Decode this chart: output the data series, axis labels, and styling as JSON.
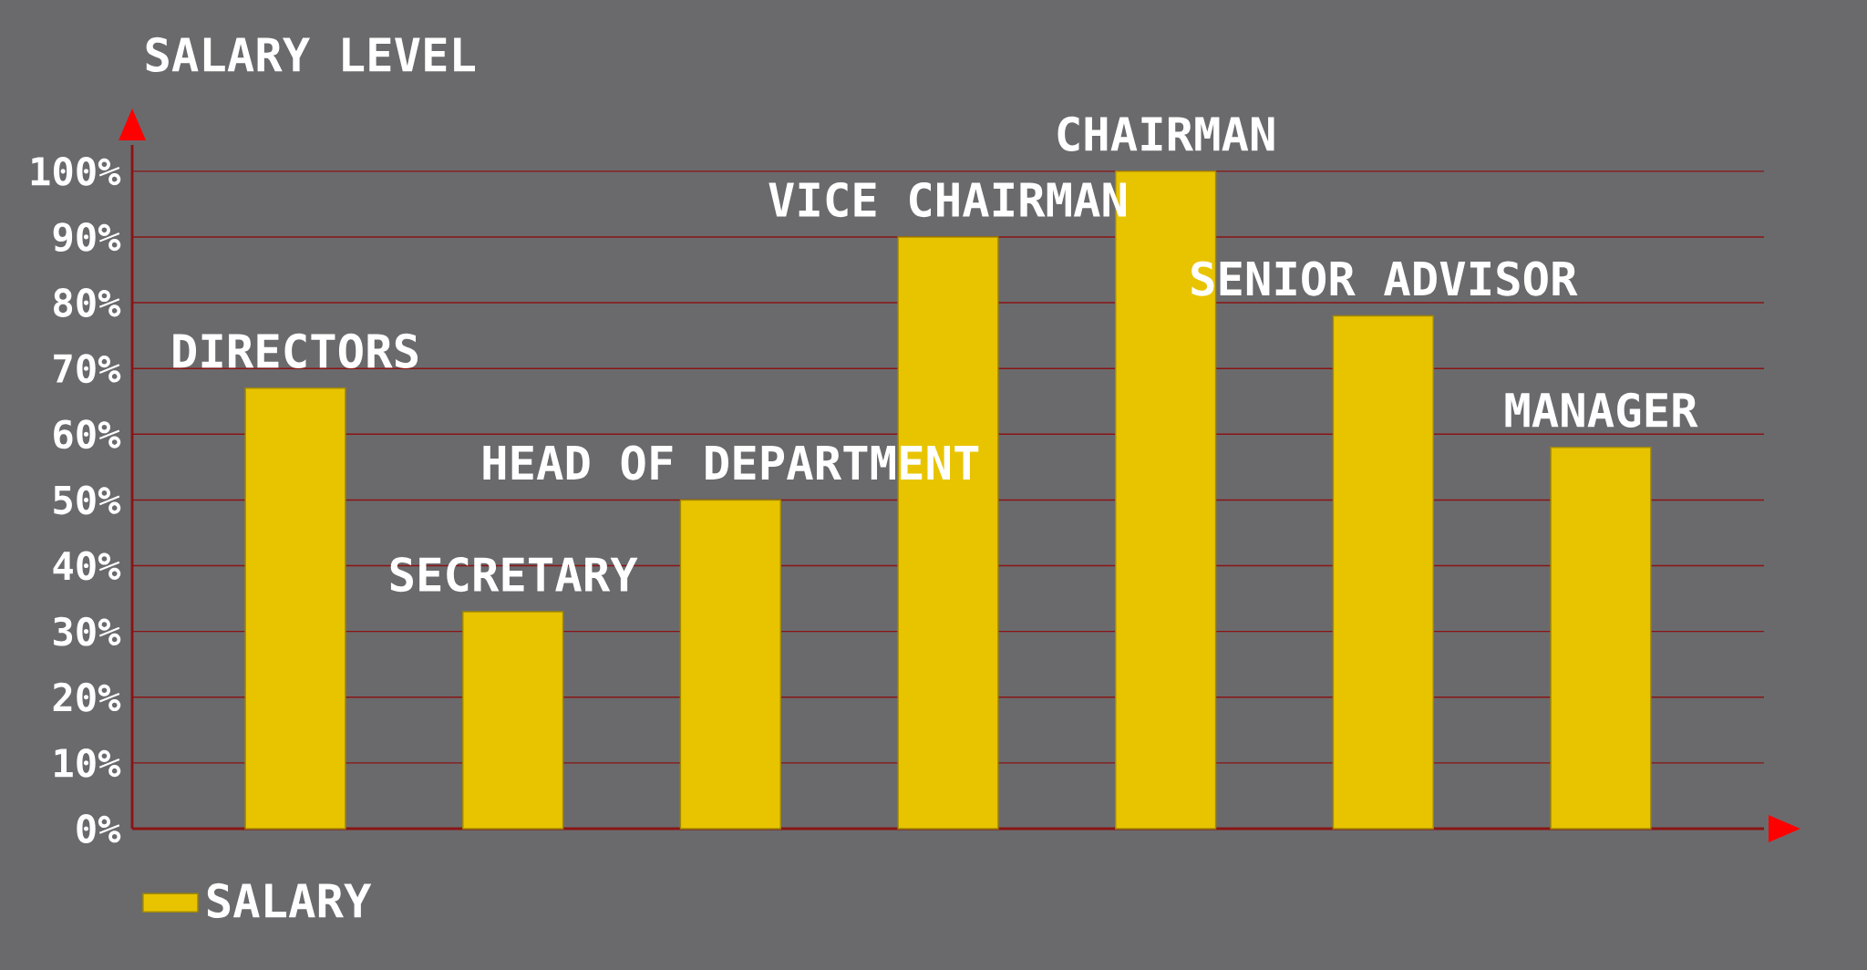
{
  "chart_data": {
    "type": "bar",
    "ylabel": "SALARY LEVEL",
    "categories": [
      "DIRECTORS",
      "SECRETARY",
      "HEAD OF DEPARTMENT",
      "VICE CHAIRMAN",
      "CHAIRMAN",
      "SENIOR ADVISOR",
      "MANAGER"
    ],
    "series": [
      {
        "name": "SALARY",
        "color": "#e8c400",
        "values": [
          67,
          33,
          50,
          90,
          100,
          78,
          58
        ]
      }
    ],
    "ylim": [
      0,
      100
    ],
    "yticks": [
      {
        "value": 0,
        "label": "0%"
      },
      {
        "value": 10,
        "label": "10%"
      },
      {
        "value": 20,
        "label": "20%"
      },
      {
        "value": 30,
        "label": "30%"
      },
      {
        "value": 40,
        "label": "40%"
      },
      {
        "value": 50,
        "label": "50%"
      },
      {
        "value": 60,
        "label": "60%"
      },
      {
        "value": 70,
        "label": "70%"
      },
      {
        "value": 80,
        "label": "80%"
      },
      {
        "value": 90,
        "label": "90%"
      },
      {
        "value": 100,
        "label": "100%"
      }
    ],
    "grid": "y",
    "legend": "bottom left"
  }
}
